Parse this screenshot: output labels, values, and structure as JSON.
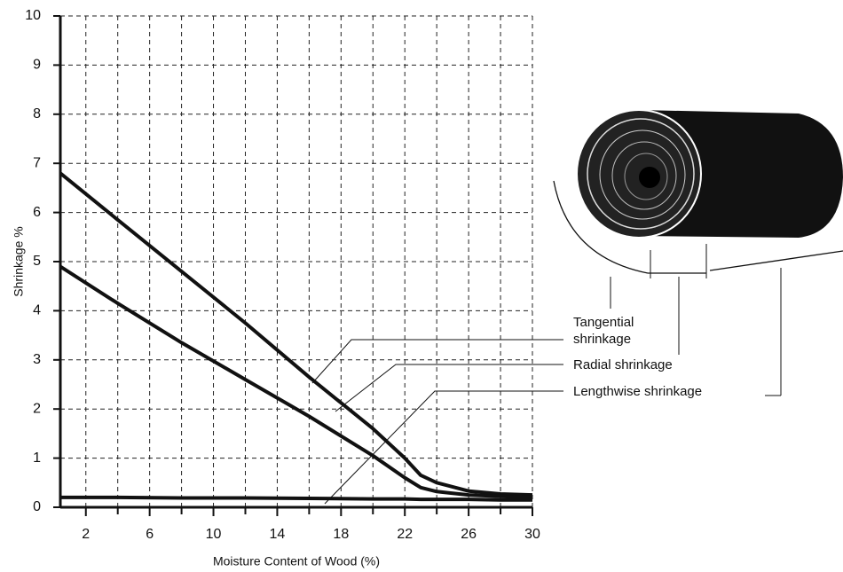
{
  "chart_data": {
    "type": "line",
    "x_label": "Moisture Content of Wood (%)",
    "y_label": "Shrinkage %",
    "x": [
      0.4,
      4,
      8,
      12,
      16,
      20,
      22,
      23,
      24,
      26,
      28,
      30
    ],
    "series": [
      {
        "name": "Tangential shrinkage",
        "color": "#111111",
        "values": [
          6.8,
          5.85,
          4.8,
          3.75,
          2.65,
          1.6,
          1.0,
          0.65,
          0.5,
          0.33,
          0.27,
          0.25
        ]
      },
      {
        "name": "Radial shrinkage",
        "color": "#111111",
        "values": [
          4.9,
          4.15,
          3.35,
          2.6,
          1.85,
          1.05,
          0.6,
          0.4,
          0.32,
          0.25,
          0.22,
          0.2
        ]
      },
      {
        "name": "Lengthwise shrinkage",
        "color": "#111111",
        "values": [
          0.2,
          0.2,
          0.19,
          0.19,
          0.18,
          0.17,
          0.17,
          0.16,
          0.16,
          0.16,
          0.15,
          0.15
        ]
      }
    ],
    "xlim": [
      0.4,
      30
    ],
    "xticks": [
      2,
      6,
      10,
      14,
      18,
      22,
      26,
      30
    ],
    "xminorticks": [
      4,
      8,
      12,
      16,
      20,
      24,
      28
    ],
    "ylim": [
      0,
      10
    ],
    "yticks": [
      0,
      1,
      2,
      3,
      4,
      5,
      6,
      7,
      8,
      9,
      10
    ],
    "grid": true
  }
}
